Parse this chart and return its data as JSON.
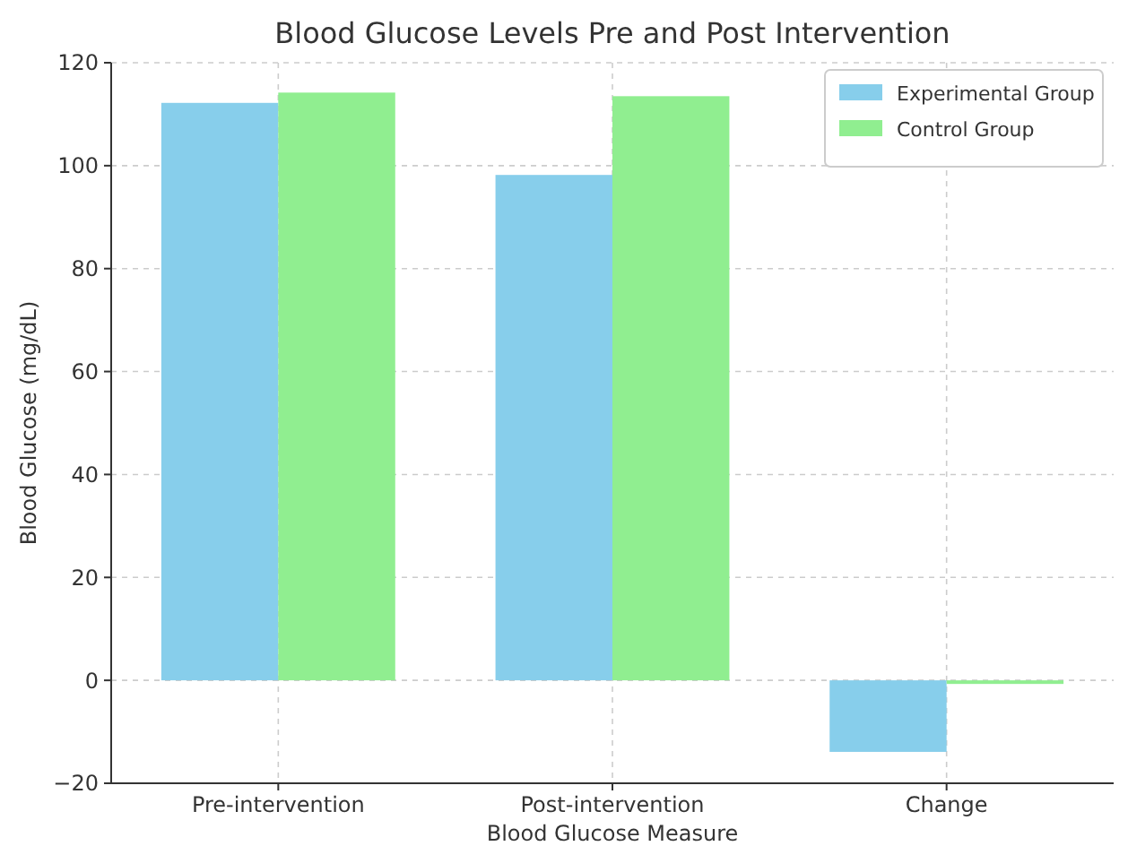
{
  "chart_data": {
    "type": "bar",
    "title": "Blood Glucose Levels Pre and Post Intervention",
    "xlabel": "Blood Glucose Measure",
    "ylabel": "Blood Glucose (mg/dL)",
    "categories": [
      "Pre-intervention",
      "Post-intervention",
      "Change"
    ],
    "series": [
      {
        "name": "Experimental Group",
        "color": "#87ceeb",
        "values": [
          112.2,
          98.2,
          -13.9
        ]
      },
      {
        "name": "Control Group",
        "color": "#90ee90",
        "values": [
          114.2,
          113.5,
          -0.7
        ]
      }
    ],
    "ylim": [
      -20,
      120
    ],
    "yticks": [
      -20,
      0,
      20,
      40,
      60,
      80,
      100,
      120
    ],
    "grid": true,
    "legend": "top right"
  }
}
